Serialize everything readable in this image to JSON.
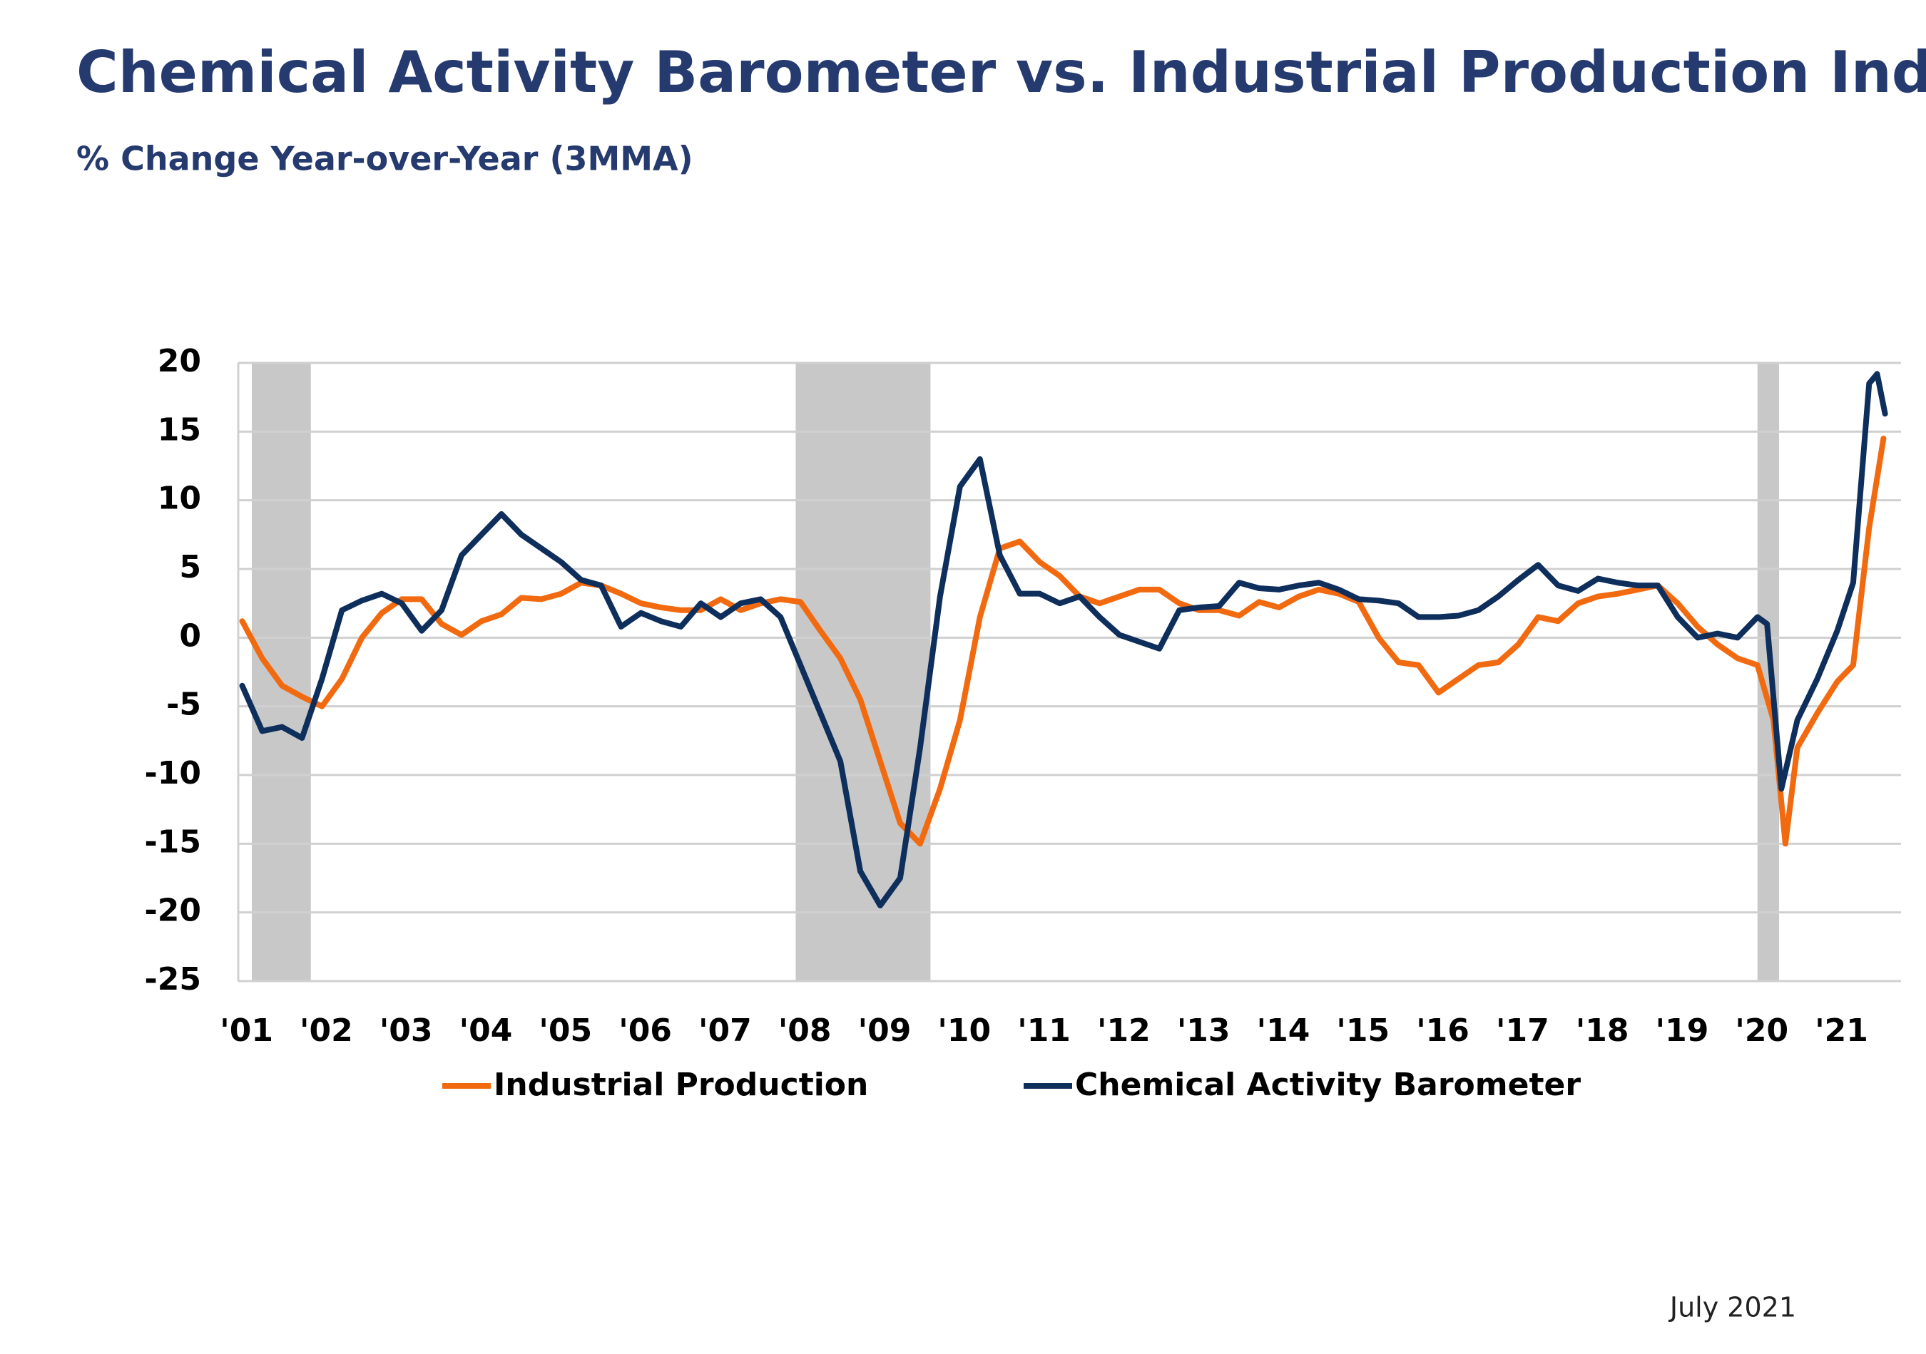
{
  "chart_data": {
    "type": "line",
    "title": "Chemical Activity Barometer vs. Industrial Production Index",
    "subtitle": "% Change Year-over-Year (3MMA)",
    "footnote": "July 2021",
    "xlim": [
      2000.95,
      2021.8
    ],
    "ylim": [
      -25,
      20
    ],
    "yticks": [
      -25,
      -20,
      -15,
      -10,
      -5,
      0,
      5,
      10,
      15,
      20
    ],
    "xticks": [
      {
        "value": 2001,
        "label": "'01"
      },
      {
        "value": 2002,
        "label": "'02"
      },
      {
        "value": 2003,
        "label": "'03"
      },
      {
        "value": 2004,
        "label": "'04"
      },
      {
        "value": 2005,
        "label": "'05"
      },
      {
        "value": 2006,
        "label": "'06"
      },
      {
        "value": 2007,
        "label": "'07"
      },
      {
        "value": 2008,
        "label": "'08"
      },
      {
        "value": 2009,
        "label": "'09"
      },
      {
        "value": 2010,
        "label": "'10"
      },
      {
        "value": 2011,
        "label": "'11"
      },
      {
        "value": 2012,
        "label": "'12"
      },
      {
        "value": 2013,
        "label": "'13"
      },
      {
        "value": 2014,
        "label": "'14"
      },
      {
        "value": 2015,
        "label": "'15"
      },
      {
        "value": 2016,
        "label": "'16"
      },
      {
        "value": 2017,
        "label": "'17"
      },
      {
        "value": 2018,
        "label": "'18"
      },
      {
        "value": 2019,
        "label": "'19"
      },
      {
        "value": 2020,
        "label": "'20"
      },
      {
        "value": 2021,
        "label": "'21"
      }
    ],
    "grid": true,
    "shaded_regions": [
      [
        2001.12,
        2001.86
      ],
      [
        2007.94,
        2009.63
      ],
      [
        2020.0,
        2020.27
      ]
    ],
    "shade_color": "#c8c8c8",
    "series": [
      {
        "name": "Industrial Production",
        "color": "#f26a10",
        "x": [
          2001.0,
          2001.25,
          2001.5,
          2001.75,
          2002.0,
          2002.25,
          2002.5,
          2002.75,
          2003.0,
          2003.25,
          2003.5,
          2003.75,
          2004.0,
          2004.25,
          2004.5,
          2004.75,
          2005.0,
          2005.25,
          2005.5,
          2005.75,
          2006.0,
          2006.25,
          2006.5,
          2006.75,
          2007.0,
          2007.25,
          2007.5,
          2007.75,
          2008.0,
          2008.25,
          2008.5,
          2008.75,
          2009.0,
          2009.25,
          2009.5,
          2009.75,
          2010.0,
          2010.25,
          2010.5,
          2010.75,
          2011.0,
          2011.25,
          2011.5,
          2011.75,
          2012.0,
          2012.25,
          2012.5,
          2012.75,
          2013.0,
          2013.25,
          2013.5,
          2013.75,
          2014.0,
          2014.25,
          2014.5,
          2014.75,
          2015.0,
          2015.25,
          2015.5,
          2015.75,
          2016.0,
          2016.25,
          2016.5,
          2016.75,
          2017.0,
          2017.25,
          2017.5,
          2017.75,
          2018.0,
          2018.25,
          2018.5,
          2018.75,
          2019.0,
          2019.25,
          2019.5,
          2019.75,
          2020.0,
          2020.2,
          2020.35,
          2020.5,
          2020.75,
          2021.0,
          2021.2,
          2021.4,
          2021.58
        ],
        "values": [
          1.2,
          -1.5,
          -3.5,
          -4.3,
          -5,
          -3,
          0,
          1.8,
          2.8,
          2.8,
          1.0,
          0.2,
          1.2,
          1.7,
          2.9,
          2.8,
          3.2,
          4.0,
          3.8,
          3.2,
          2.5,
          2.2,
          2.0,
          2.0,
          2.8,
          2.0,
          2.5,
          2.8,
          2.6,
          0.5,
          -1.5,
          -4.5,
          -9,
          -13.5,
          -15,
          -11,
          -6,
          1.5,
          6.5,
          7.0,
          5.5,
          4.5,
          3.0,
          2.5,
          3.0,
          3.5,
          3.5,
          2.5,
          2.0,
          2.0,
          1.6,
          2.6,
          2.2,
          3.0,
          3.5,
          3.2,
          2.6,
          0,
          -1.8,
          -2.0,
          -4.0,
          -3.0,
          -2.0,
          -1.8,
          -0.5,
          1.5,
          1.2,
          2.5,
          3.0,
          3.2,
          3.5,
          3.8,
          2.5,
          0.8,
          -0.5,
          -1.5,
          -2.0,
          -6,
          -15,
          -8,
          -5.5,
          -3.2,
          -2,
          8,
          14.5
        ]
      },
      {
        "name": "Chemical Activity Barometer",
        "color": "#0e2e5c",
        "x": [
          2001.0,
          2001.25,
          2001.5,
          2001.75,
          2002.0,
          2002.25,
          2002.5,
          2002.75,
          2003.0,
          2003.25,
          2003.5,
          2003.75,
          2004.0,
          2004.25,
          2004.5,
          2004.75,
          2005.0,
          2005.25,
          2005.5,
          2005.75,
          2006.0,
          2006.25,
          2006.5,
          2006.75,
          2007.0,
          2007.25,
          2007.5,
          2007.75,
          2008.0,
          2008.25,
          2008.5,
          2008.75,
          2009.0,
          2009.25,
          2009.5,
          2009.75,
          2010.0,
          2010.25,
          2010.5,
          2010.75,
          2011.0,
          2011.25,
          2011.5,
          2011.75,
          2012.0,
          2012.25,
          2012.5,
          2012.75,
          2013.0,
          2013.25,
          2013.5,
          2013.75,
          2014.0,
          2014.25,
          2014.5,
          2014.75,
          2015.0,
          2015.25,
          2015.5,
          2015.75,
          2016.0,
          2016.25,
          2016.5,
          2016.75,
          2017.0,
          2017.25,
          2017.5,
          2017.75,
          2018.0,
          2018.25,
          2018.5,
          2018.75,
          2019.0,
          2019.25,
          2019.5,
          2019.75,
          2020.0,
          2020.12,
          2020.3,
          2020.5,
          2020.75,
          2021.0,
          2021.2,
          2021.4,
          2021.5,
          2021.6
        ],
        "values": [
          -3.5,
          -6.8,
          -6.5,
          -7.3,
          -3,
          2,
          2.7,
          3.2,
          2.5,
          0.5,
          2,
          6,
          7.5,
          9.0,
          7.5,
          6.5,
          5.5,
          4.2,
          3.8,
          0.8,
          1.8,
          1.2,
          0.8,
          2.5,
          1.5,
          2.5,
          2.8,
          1.5,
          -2,
          -5.5,
          -9,
          -17,
          -19.5,
          -17.5,
          -8,
          3,
          11,
          13,
          6,
          3.2,
          3.2,
          2.5,
          3.0,
          1.5,
          0.2,
          -0.3,
          -0.8,
          2,
          2.2,
          2.3,
          4.0,
          3.6,
          3.5,
          3.8,
          4.0,
          3.5,
          2.8,
          2.7,
          2.5,
          1.5,
          1.5,
          1.6,
          2.0,
          3.0,
          4.2,
          5.3,
          3.8,
          3.4,
          4.3,
          4.0,
          3.8,
          3.8,
          1.5,
          0.0,
          0.3,
          0.0,
          1.5,
          1.0,
          -11,
          -6,
          -3,
          0.5,
          4,
          18.5,
          19.2,
          16.3
        ]
      }
    ]
  }
}
